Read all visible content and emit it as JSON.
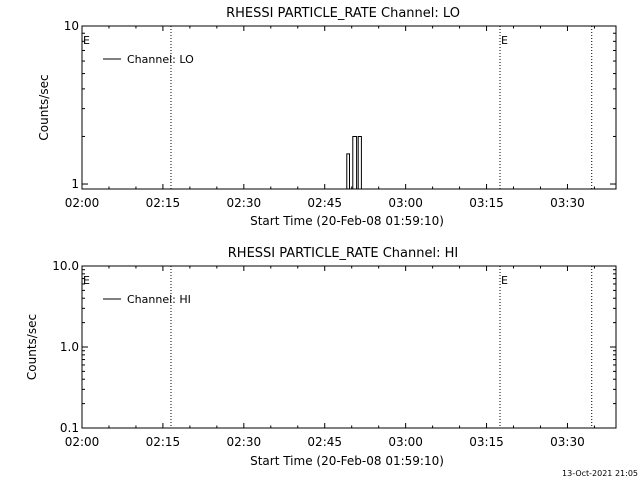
{
  "chart_data": [
    {
      "type": "line",
      "title": "RHESSI PARTICLE_RATE Channel: LO",
      "xlabel": "Start Time (20-Feb-08 01:59:10)",
      "ylabel": "Counts/sec",
      "x_tick_labels": [
        "02:00",
        "02:15",
        "02:30",
        "02:45",
        "03:00",
        "03:15",
        "03:30"
      ],
      "x_ticks_min": [
        0,
        15,
        30,
        45,
        60,
        75,
        90
      ],
      "xlim_min": [
        0,
        99
      ],
      "y_scale": "log",
      "ylim": [
        0.93,
        10
      ],
      "y_ticks": [
        1,
        10
      ],
      "y_tick_labels": [
        "1",
        "10"
      ],
      "legend": {
        "label": "Channel: LO",
        "placement": "top-left"
      },
      "vlines_min": [
        16.5,
        77.5,
        94.5
      ],
      "event_marks": [
        {
          "label": "E",
          "x_min": 0
        },
        {
          "label": "E",
          "x_min": 77.5
        }
      ],
      "series": [
        {
          "name": "Channel: LO",
          "segments": [
            {
              "x_min": [
                48.6,
                49.1,
                49.1,
                49.6,
                49.6,
                50.2,
                50.2,
                50.9,
                50.9,
                51.2,
                51.2,
                51.8,
                51.8
              ],
              "y": [
                0.93,
                0.93,
                1.55,
                1.55,
                0.93,
                0.93,
                2.0,
                2.0,
                0.93,
                0.93,
                2.0,
                2.0,
                0.93
              ]
            }
          ]
        }
      ]
    },
    {
      "type": "line",
      "title": "RHESSI PARTICLE_RATE Channel: HI",
      "xlabel": "Start Time (20-Feb-08 01:59:10)",
      "ylabel": "Counts/sec",
      "x_tick_labels": [
        "02:00",
        "02:15",
        "02:30",
        "02:45",
        "03:00",
        "03:15",
        "03:30"
      ],
      "x_ticks_min": [
        0,
        15,
        30,
        45,
        60,
        75,
        90
      ],
      "xlim_min": [
        0,
        99
      ],
      "y_scale": "log",
      "ylim": [
        0.1,
        10
      ],
      "y_ticks": [
        0.1,
        1,
        10
      ],
      "y_tick_labels": [
        "0.1",
        "1.0",
        "10.0"
      ],
      "legend": {
        "label": "Channel: HI",
        "placement": "top-left"
      },
      "vlines_min": [
        16.5,
        77.5,
        94.5
      ],
      "event_marks": [
        {
          "label": "E",
          "x_min": 0
        },
        {
          "label": "E",
          "x_min": 77.5
        }
      ],
      "series": [
        {
          "name": "Channel: HI",
          "segments": []
        }
      ]
    }
  ],
  "footer": {
    "timestamp": "13-Oct-2021 21:05"
  }
}
